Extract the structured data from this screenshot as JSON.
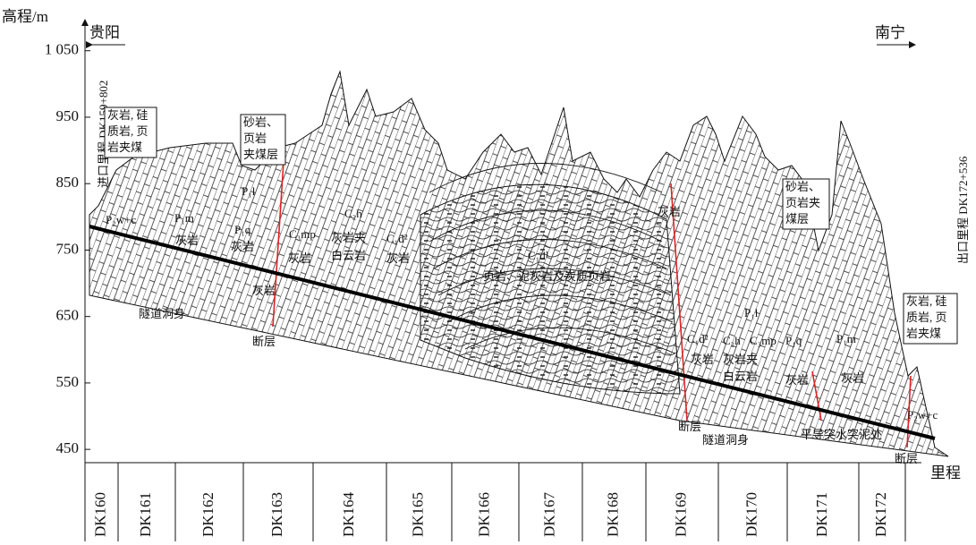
{
  "axis": {
    "y_label": "高程/m",
    "x_label": "里程",
    "ylim": [
      430,
      1086
    ],
    "yticks": [
      {
        "value": 1050,
        "label": "1 050"
      },
      950,
      850,
      750,
      650,
      550,
      450
    ],
    "x_categories": [
      "DK160",
      "DK161",
      "DK162",
      "DK163",
      "DK164",
      "DK165",
      "DK166",
      "DK167",
      "DK168",
      "DK169",
      "DK170",
      "DK171",
      "DK172"
    ]
  },
  "places": {
    "start": "贵阳",
    "end": "南宁"
  },
  "mileage_marks": {
    "start": "进口里程 DK159+802",
    "end": "出口里程 DK172+536"
  },
  "notes": [
    {
      "lines": [
        "灰岩, 硅",
        "质岩, 页",
        "岩夹煤"
      ]
    },
    {
      "lines": [
        "砂岩、",
        "页岩",
        "夹煤层"
      ]
    },
    {
      "lines": [
        "砂岩、",
        "页岩夹",
        "煤层"
      ]
    },
    {
      "lines": [
        "灰岩, 硅",
        "质岩, 页",
        "岩夹煤"
      ]
    }
  ],
  "labels": [
    "P₂w+c",
    "P₁m",
    "灰岩",
    "P₁l",
    "P₁q",
    "灰岩",
    "C₃mp",
    "灰岩",
    "C₂h",
    "灰岩夹",
    "白云岩",
    "C₁d²",
    "灰岩",
    "C₁d¹",
    "页岩、泥灰岩及炭质页岩",
    "灰岩",
    "灰岩",
    "断层",
    "隧道洞身",
    "P₁l",
    "C₁d²",
    "灰岩",
    "C₂h",
    "灰岩夹",
    "白云岩",
    "C₃mp",
    "P₁q",
    "灰岩",
    "P₁m",
    "灰岩",
    "断层",
    "隧道洞身",
    "平导突水突泥处",
    "P₂w+c",
    "断层"
  ]
}
